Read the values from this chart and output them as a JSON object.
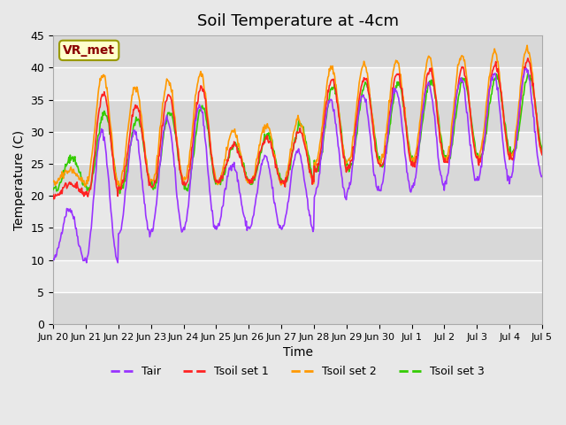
{
  "title": "Soil Temperature at -4cm",
  "xlabel": "Time",
  "ylabel": "Temperature (C)",
  "ylim": [
    0,
    45
  ],
  "yticks": [
    0,
    5,
    10,
    15,
    20,
    25,
    30,
    35,
    40,
    45
  ],
  "bg_color": "#e8e8e8",
  "plot_bg_color": "#f0f0f0",
  "annotation_text": "VR_met",
  "annotation_color": "#8B0000",
  "annotation_bg": "#ffffcc",
  "annotation_edge": "#999900",
  "line_colors": {
    "Tair": "#9933ff",
    "Tsoil1": "#ff2222",
    "Tsoil2": "#ff9900",
    "Tsoil3": "#33cc00"
  },
  "legend_labels": [
    "Tair",
    "Tsoil set 1",
    "Tsoil set 2",
    "Tsoil set 3"
  ],
  "x_tick_labels": [
    "Jun 20",
    "Jun 21",
    "Jun 22",
    "Jun 23",
    "Jun 24",
    "Jun 25",
    "Jun 26",
    "Jun 27",
    "Jun 28",
    "Jun 29",
    "Jun 30",
    "Jul 1",
    "Jul 2",
    "Jul 3",
    "Jul 4",
    "Jul 5"
  ],
  "n_days": 15,
  "points_per_day": 48
}
